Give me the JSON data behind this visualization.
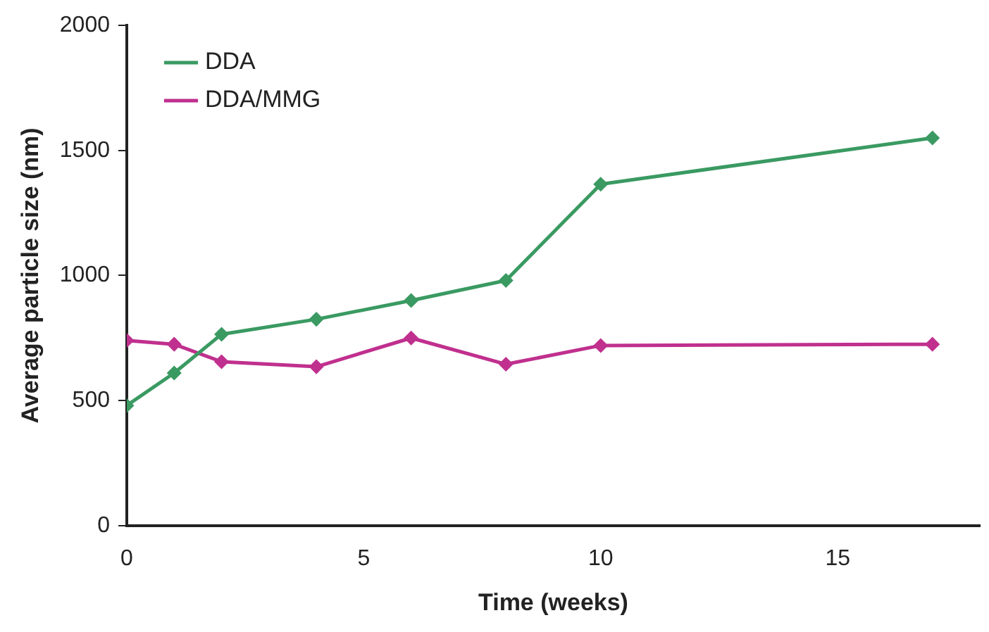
{
  "chart_data": {
    "type": "line",
    "xlabel": "Time (weeks)",
    "ylabel": "Average particle size (nm)",
    "x": [
      0,
      1,
      2,
      4,
      6,
      8,
      10,
      17
    ],
    "series": [
      {
        "name": "DDA",
        "color": "#3a9a62",
        "values": [
          480,
          610,
          765,
          825,
          900,
          980,
          1365,
          1550
        ]
      },
      {
        "name": "DDA/MMG",
        "color": "#c0308e",
        "values": [
          740,
          725,
          655,
          635,
          750,
          645,
          720,
          725
        ]
      }
    ],
    "xlim": [
      0,
      18
    ],
    "xticks": [
      0,
      5,
      10,
      15
    ],
    "ylim": [
      0,
      2000
    ],
    "yticks": [
      0,
      500,
      1000,
      1500,
      2000
    ],
    "grid": false,
    "legend": "top left",
    "marker": "diamond",
    "line_style": "solid"
  }
}
